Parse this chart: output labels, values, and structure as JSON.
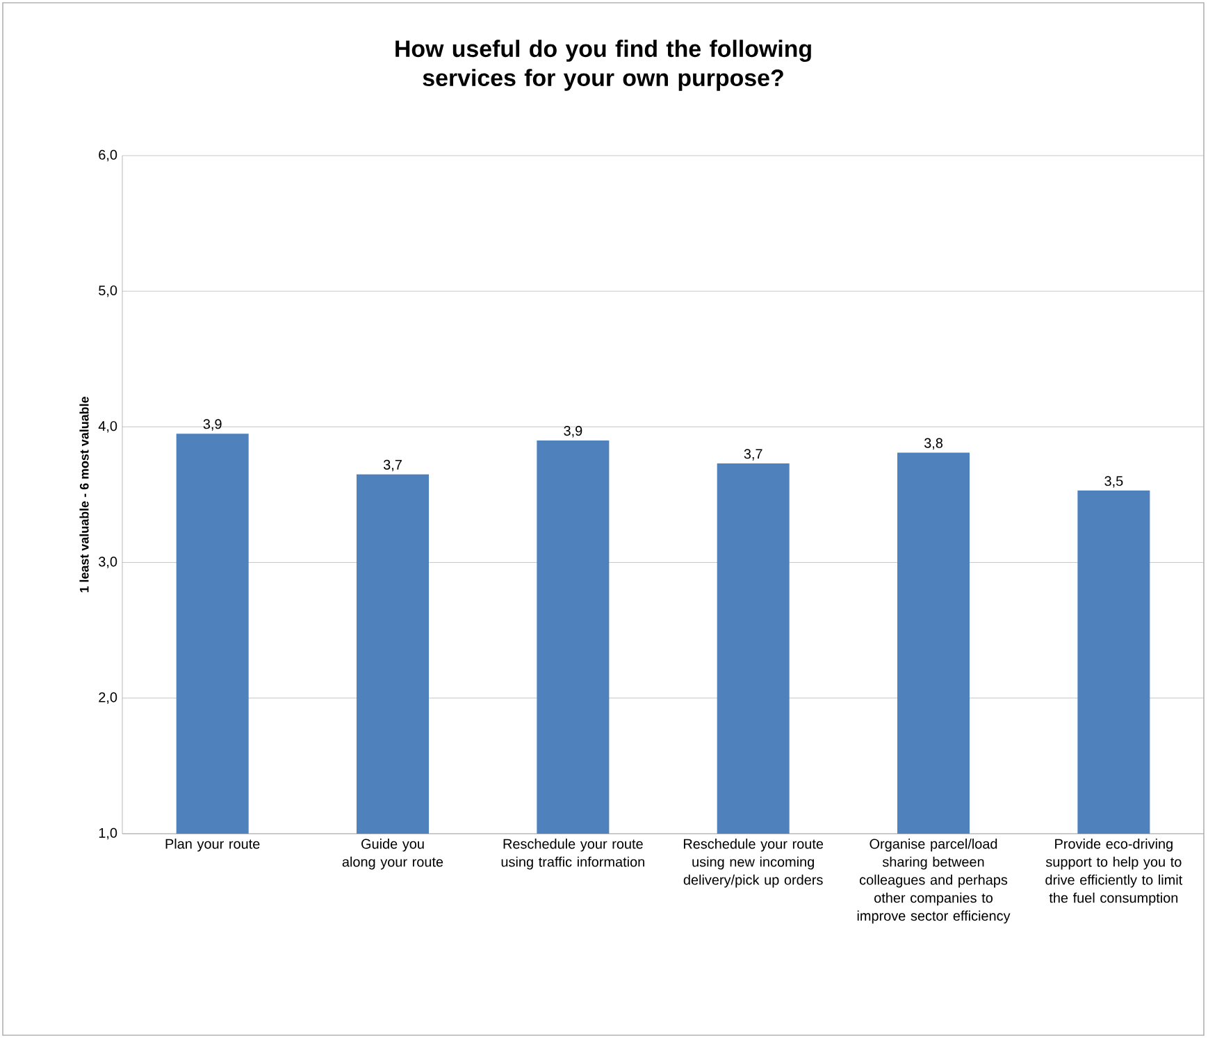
{
  "chart_data": {
    "type": "bar",
    "title": "How useful do you find the following services for your own purpose?",
    "ylabel": "1 least valuable - 6  most valuable",
    "categories": [
      "Plan your route",
      "Guide you along your route",
      "Reschedule your route using traffic information",
      "Reschedule your route using new incoming delivery/pick up orders",
      "Organise parcel/load sharing between colleagues and perhaps other companies to improve sector efficiency",
      "Provide eco-driving support to help you to drive efficiently to limit the fuel consumption"
    ],
    "values": [
      3.95,
      3.65,
      3.9,
      3.73,
      3.81,
      3.53
    ],
    "value_labels": [
      "3,9",
      "3,7",
      "3,9",
      "3,7",
      "3,8",
      "3,5"
    ],
    "color": "#4f81bd",
    "ylim": [
      1,
      6
    ],
    "yticks": [
      {
        "value": 1,
        "label": "1,0"
      },
      {
        "value": 2,
        "label": "2,0"
      },
      {
        "value": 3,
        "label": "3,0"
      },
      {
        "value": 4,
        "label": "4,0"
      },
      {
        "value": 5,
        "label": "5,0"
      },
      {
        "value": 6,
        "label": "6,0"
      }
    ],
    "grid": "y"
  }
}
